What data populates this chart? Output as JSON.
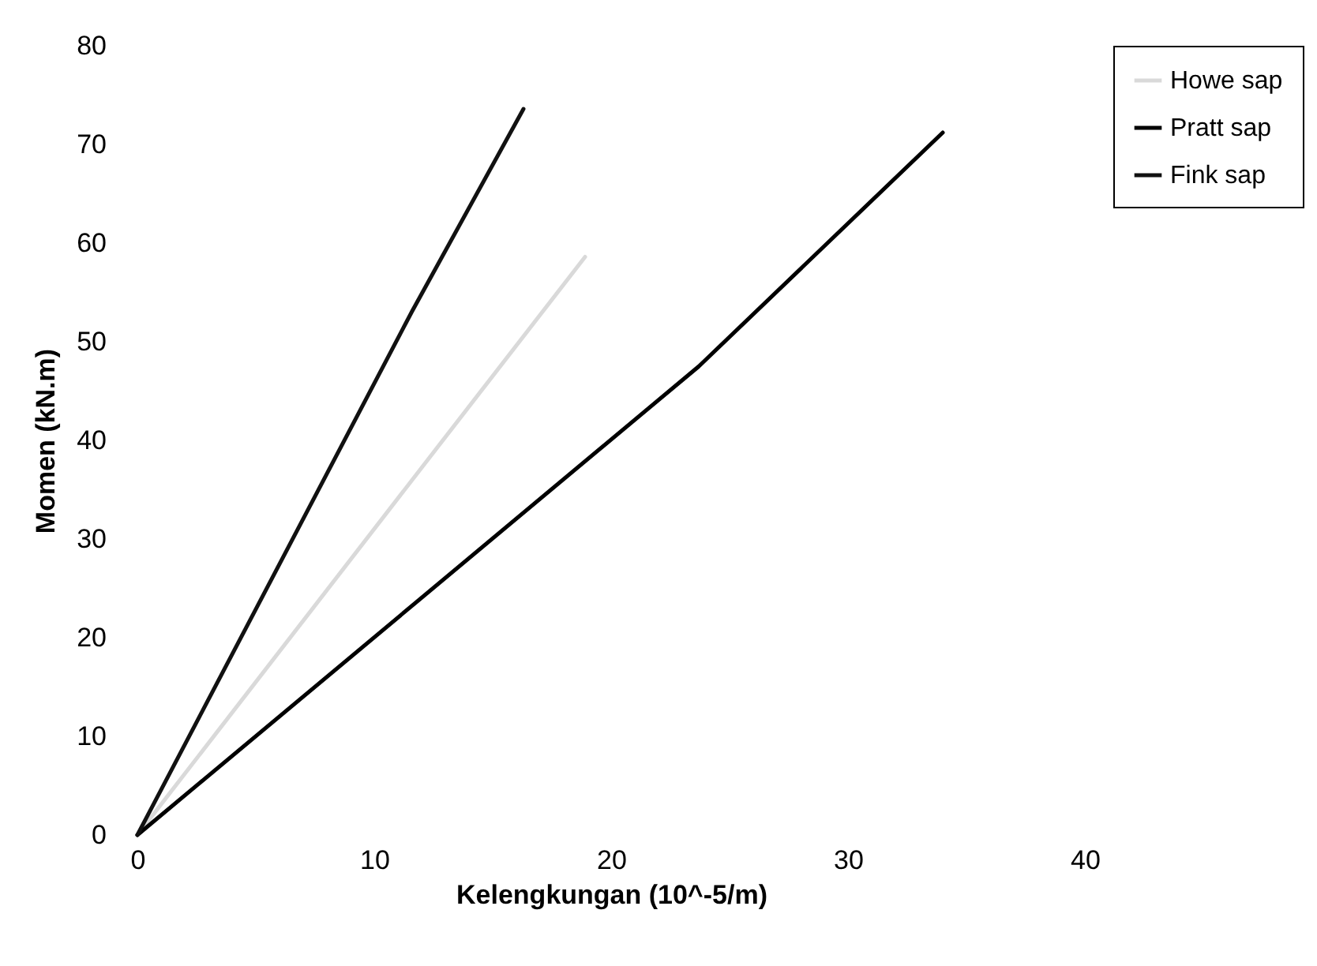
{
  "chart_data": {
    "type": "line",
    "xlabel": "Kelengkungan (10^-5/m)",
    "ylabel": "Momen (kN.m)",
    "xlim": [
      0,
      40
    ],
    "ylim": [
      0,
      80
    ],
    "xticks": [
      0,
      10,
      20,
      30,
      40
    ],
    "yticks": [
      0,
      10,
      20,
      30,
      40,
      50,
      60,
      70,
      80
    ],
    "grid": false,
    "legend": "right",
    "marker": "none",
    "series": [
      {
        "name": "Howe sap",
        "color": "#d9d9d9",
        "x": [
          0,
          12.7,
          18.9
        ],
        "values": [
          0,
          39.4,
          58.6
        ]
      },
      {
        "name": "Pratt sap",
        "color": "#000000",
        "x": [
          0,
          23.7,
          34.0
        ],
        "values": [
          0,
          47.5,
          71.2
        ]
      },
      {
        "name": "Fink sap",
        "color": "#111111",
        "x": [
          0,
          11.6,
          16.3
        ],
        "values": [
          0,
          53.1,
          73.6
        ]
      }
    ]
  }
}
